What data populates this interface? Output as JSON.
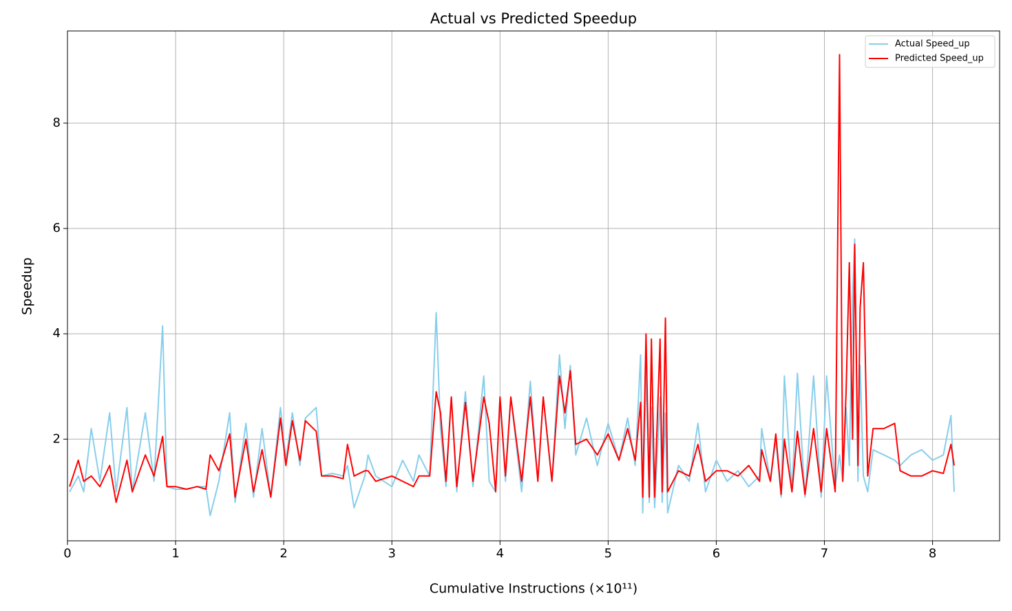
{
  "chart_data": {
    "type": "line",
    "title": "Actual vs Predicted Speedup",
    "xlabel": "Cumulative Instructions (×10¹¹)",
    "ylabel": "Speedup",
    "x": [
      0.02,
      0.1,
      0.15,
      0.22,
      0.3,
      0.39,
      0.45,
      0.55,
      0.6,
      0.72,
      0.8,
      0.88,
      0.92,
      1.0,
      1.1,
      1.2,
      1.28,
      1.32,
      1.4,
      1.5,
      1.55,
      1.65,
      1.72,
      1.8,
      1.88,
      1.97,
      2.02,
      2.08,
      2.15,
      2.2,
      2.3,
      2.35,
      2.45,
      2.55,
      2.59,
      2.65,
      2.75,
      2.78,
      2.85,
      3.0,
      3.1,
      3.2,
      3.25,
      3.35,
      3.41,
      3.45,
      3.5,
      3.55,
      3.6,
      3.68,
      3.75,
      3.85,
      3.9,
      3.96,
      4.0,
      4.05,
      4.1,
      4.2,
      4.28,
      4.35,
      4.4,
      4.48,
      4.55,
      4.6,
      4.65,
      4.7,
      4.8,
      4.9,
      5.0,
      5.1,
      5.18,
      5.25,
      5.3,
      5.32,
      5.35,
      5.38,
      5.4,
      5.43,
      5.48,
      5.5,
      5.53,
      5.55,
      5.65,
      5.75,
      5.83,
      5.9,
      6.0,
      6.1,
      6.2,
      6.3,
      6.4,
      6.42,
      6.5,
      6.55,
      6.6,
      6.63,
      6.7,
      6.75,
      6.82,
      6.9,
      6.97,
      7.02,
      7.1,
      7.14,
      7.17,
      7.2,
      7.23,
      7.26,
      7.28,
      7.31,
      7.33,
      7.36,
      7.4,
      7.45,
      7.55,
      7.65,
      7.7,
      7.8,
      7.9,
      8.0,
      8.1,
      8.17,
      8.2
    ],
    "series": [
      {
        "name": "Actual Speed_up",
        "color": "#87ceeb",
        "values": [
          1.0,
          1.3,
          1.0,
          2.2,
          1.2,
          2.5,
          1.0,
          2.6,
          1.0,
          2.5,
          1.2,
          4.15,
          1.1,
          1.05,
          1.05,
          1.1,
          1.1,
          0.55,
          1.2,
          2.5,
          0.8,
          2.3,
          0.9,
          2.2,
          0.9,
          2.6,
          1.6,
          2.5,
          1.5,
          2.4,
          2.6,
          1.3,
          1.35,
          1.3,
          1.5,
          0.7,
          1.3,
          1.7,
          1.3,
          1.1,
          1.6,
          1.2,
          1.7,
          1.3,
          4.4,
          2.2,
          1.1,
          2.8,
          1.0,
          2.9,
          1.1,
          3.2,
          1.2,
          1.0,
          2.8,
          1.2,
          2.8,
          1.0,
          3.1,
          1.2,
          2.8,
          1.2,
          3.6,
          2.2,
          3.4,
          1.7,
          2.4,
          1.5,
          2.3,
          1.6,
          2.4,
          1.5,
          3.6,
          0.6,
          3.3,
          0.8,
          2.6,
          0.7,
          2.8,
          0.8,
          2.5,
          0.6,
          1.5,
          1.2,
          2.3,
          1.0,
          1.6,
          1.2,
          1.4,
          1.1,
          1.3,
          2.2,
          1.2,
          2.0,
          0.9,
          3.2,
          1.0,
          3.25,
          0.9,
          3.2,
          0.9,
          3.2,
          1.1,
          1.7,
          1.2,
          2.6,
          1.5,
          4.7,
          5.8,
          1.2,
          3.4,
          1.3,
          1.0,
          1.8,
          1.7,
          1.6,
          1.5,
          1.7,
          1.8,
          1.6,
          1.7,
          2.45,
          1.0
        ]
      },
      {
        "name": "Predicted Speed_up",
        "color": "#ff0000",
        "values": [
          1.1,
          1.6,
          1.2,
          1.3,
          1.1,
          1.5,
          0.8,
          1.6,
          1.0,
          1.7,
          1.3,
          2.05,
          1.1,
          1.1,
          1.05,
          1.1,
          1.05,
          1.7,
          1.4,
          2.1,
          0.9,
          2.0,
          1.0,
          1.8,
          0.9,
          2.4,
          1.5,
          2.35,
          1.6,
          2.35,
          2.15,
          1.3,
          1.3,
          1.25,
          1.9,
          1.3,
          1.4,
          1.4,
          1.2,
          1.3,
          1.2,
          1.1,
          1.3,
          1.3,
          2.9,
          2.5,
          1.2,
          2.8,
          1.1,
          2.7,
          1.2,
          2.8,
          2.3,
          1.0,
          2.8,
          1.3,
          2.8,
          1.2,
          2.8,
          1.2,
          2.8,
          1.2,
          3.2,
          2.5,
          3.3,
          1.9,
          2.0,
          1.7,
          2.1,
          1.6,
          2.2,
          1.6,
          2.7,
          0.9,
          4.0,
          0.9,
          3.9,
          0.9,
          3.9,
          1.0,
          4.3,
          1.0,
          1.4,
          1.3,
          1.9,
          1.2,
          1.4,
          1.4,
          1.3,
          1.5,
          1.2,
          1.8,
          1.2,
          2.1,
          0.95,
          2.0,
          1.0,
          2.15,
          0.95,
          2.2,
          1.0,
          2.2,
          1.0,
          9.3,
          1.2,
          2.9,
          5.35,
          2.0,
          5.7,
          1.5,
          4.5,
          5.35,
          1.3,
          2.2,
          2.2,
          2.3,
          1.4,
          1.3,
          1.3,
          1.4,
          1.35,
          1.9,
          1.5
        ]
      }
    ],
    "xlim": [
      0,
      8.62
    ],
    "ylim": [
      0.07,
      9.75
    ],
    "xticks": [
      0,
      1,
      2,
      3,
      4,
      5,
      6,
      7,
      8
    ],
    "yticks": [
      2,
      4,
      6,
      8
    ],
    "grid": true,
    "legend": "upper right"
  }
}
